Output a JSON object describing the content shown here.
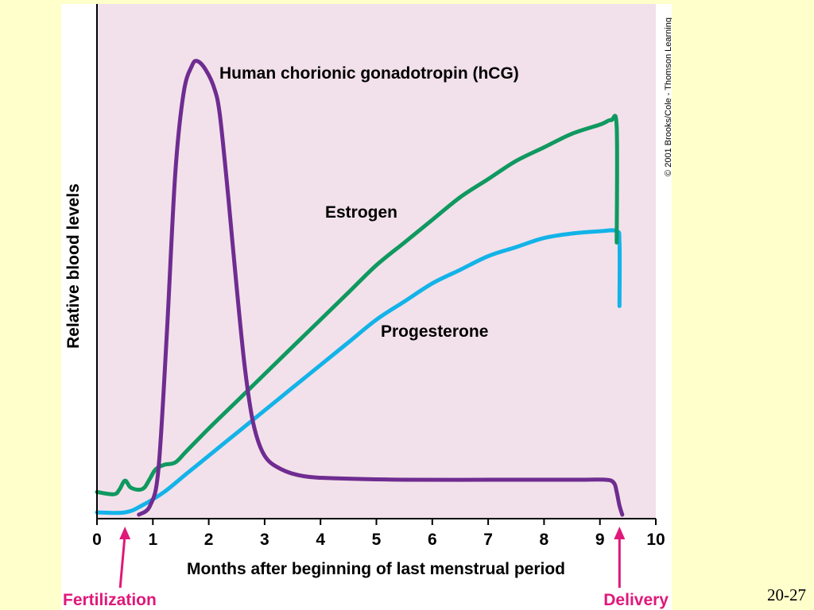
{
  "slide_number": "20-27",
  "copyright": "© 2001 Brooks/Cole - Thomson Learning",
  "colors": {
    "plot_bg": "#f2e1ea",
    "hcg": "#6f2c91",
    "estrogen": "#0f9960",
    "progesterone": "#13b3e8",
    "arrow": "#e0187a"
  },
  "chart_data": {
    "type": "line",
    "title": "",
    "xlabel": "Months after beginning of last menstrual period",
    "ylabel": "Relative blood levels",
    "xlim": [
      0,
      10
    ],
    "ylim": [
      0,
      1
    ],
    "xticks": [
      "0",
      "1",
      "2",
      "3",
      "4",
      "5",
      "6",
      "7",
      "8",
      "9",
      "10"
    ],
    "grid": false,
    "series": [
      {
        "name": "Human chorionic gonadotropin (hCG)",
        "key": "hcg",
        "points": [
          [
            0.75,
            0.0
          ],
          [
            0.95,
            0.02
          ],
          [
            1.1,
            0.1
          ],
          [
            1.25,
            0.4
          ],
          [
            1.4,
            0.75
          ],
          [
            1.55,
            0.93
          ],
          [
            1.7,
            0.99
          ],
          [
            1.8,
            1.0
          ],
          [
            1.95,
            0.98
          ],
          [
            2.1,
            0.94
          ],
          [
            2.2,
            0.88
          ],
          [
            2.35,
            0.7
          ],
          [
            2.5,
            0.5
          ],
          [
            2.65,
            0.32
          ],
          [
            2.8,
            0.2
          ],
          [
            3.0,
            0.13
          ],
          [
            3.3,
            0.1
          ],
          [
            3.7,
            0.085
          ],
          [
            4.3,
            0.08
          ],
          [
            5.5,
            0.077
          ],
          [
            7.0,
            0.077
          ],
          [
            8.5,
            0.077
          ],
          [
            9.1,
            0.077
          ],
          [
            9.25,
            0.07
          ],
          [
            9.3,
            0.05
          ],
          [
            9.35,
            0.02
          ],
          [
            9.4,
            0.0
          ]
        ]
      },
      {
        "name": "Estrogen",
        "key": "estrogen",
        "points": [
          [
            0.0,
            0.05
          ],
          [
            0.3,
            0.045
          ],
          [
            0.4,
            0.055
          ],
          [
            0.5,
            0.075
          ],
          [
            0.6,
            0.06
          ],
          [
            0.75,
            0.055
          ],
          [
            0.85,
            0.06
          ],
          [
            0.95,
            0.08
          ],
          [
            1.05,
            0.1
          ],
          [
            1.2,
            0.11
          ],
          [
            1.4,
            0.115
          ],
          [
            1.6,
            0.14
          ],
          [
            2.0,
            0.19
          ],
          [
            2.5,
            0.25
          ],
          [
            3.0,
            0.31
          ],
          [
            3.5,
            0.37
          ],
          [
            4.0,
            0.43
          ],
          [
            4.5,
            0.49
          ],
          [
            5.0,
            0.55
          ],
          [
            5.5,
            0.6
          ],
          [
            6.0,
            0.65
          ],
          [
            6.5,
            0.7
          ],
          [
            7.0,
            0.74
          ],
          [
            7.5,
            0.78
          ],
          [
            8.0,
            0.81
          ],
          [
            8.5,
            0.84
          ],
          [
            9.0,
            0.86
          ],
          [
            9.2,
            0.87
          ],
          [
            9.3,
            0.855
          ],
          [
            9.3,
            0.6
          ]
        ]
      },
      {
        "name": "Progesterone",
        "key": "progesterone",
        "points": [
          [
            0.0,
            0.005
          ],
          [
            0.5,
            0.005
          ],
          [
            0.8,
            0.02
          ],
          [
            1.2,
            0.05
          ],
          [
            1.6,
            0.09
          ],
          [
            2.0,
            0.13
          ],
          [
            2.5,
            0.18
          ],
          [
            3.0,
            0.23
          ],
          [
            3.5,
            0.28
          ],
          [
            4.0,
            0.33
          ],
          [
            4.5,
            0.38
          ],
          [
            5.0,
            0.43
          ],
          [
            5.5,
            0.47
          ],
          [
            6.0,
            0.51
          ],
          [
            6.5,
            0.54
          ],
          [
            7.0,
            0.57
          ],
          [
            7.5,
            0.59
          ],
          [
            8.0,
            0.61
          ],
          [
            8.5,
            0.62
          ],
          [
            9.0,
            0.625
          ],
          [
            9.3,
            0.625
          ],
          [
            9.35,
            0.6
          ],
          [
            9.35,
            0.46
          ]
        ]
      }
    ],
    "annotations": [
      {
        "text": "Fertilization",
        "x": 0.5
      },
      {
        "text": "Delivery",
        "x": 9.35
      }
    ]
  }
}
